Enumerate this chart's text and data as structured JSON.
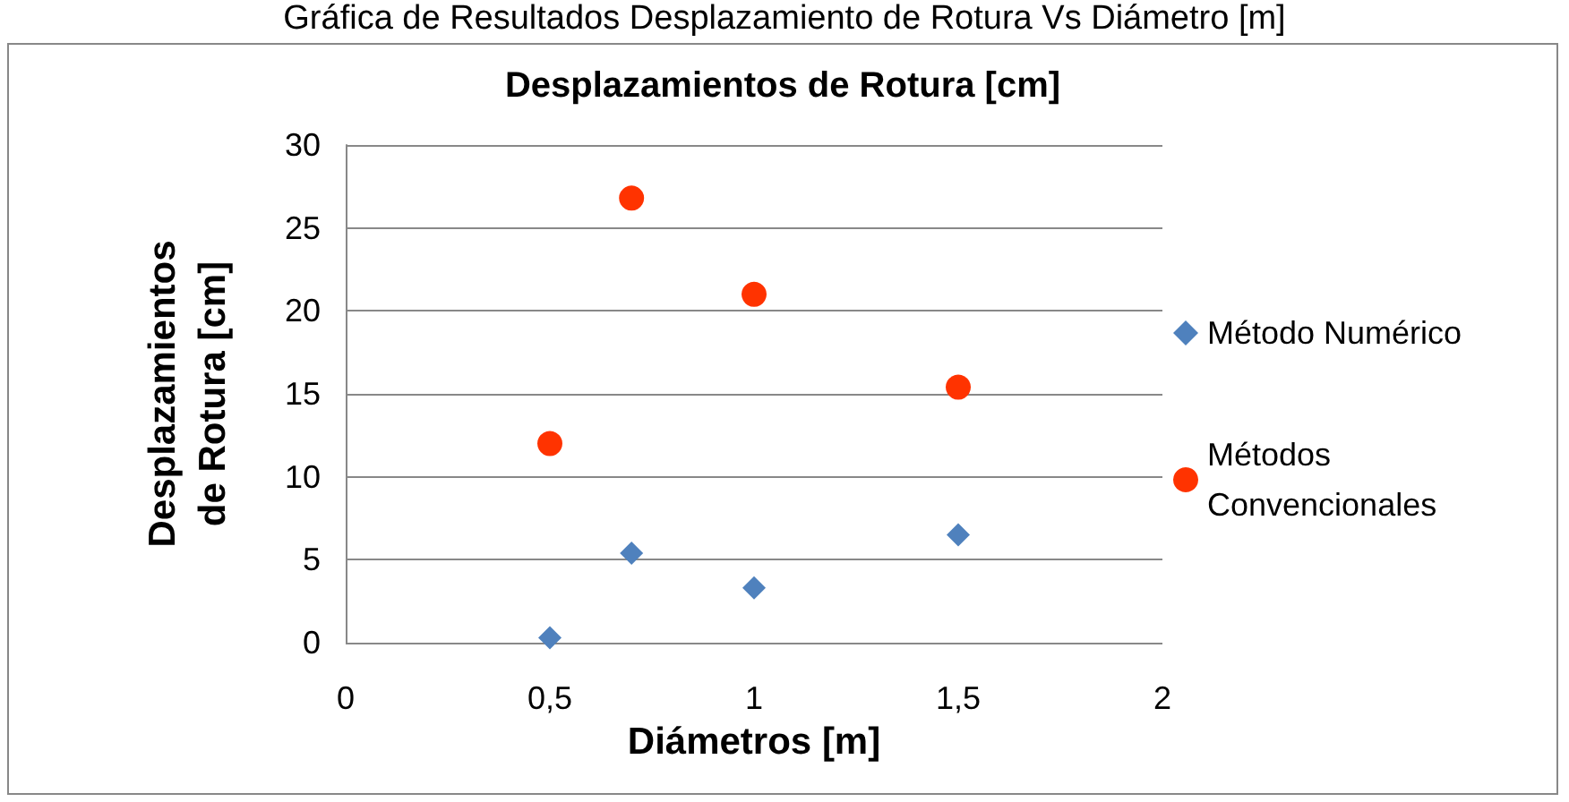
{
  "chart_data": {
    "type": "scatter",
    "title": "Desplazamientos de Rotura [cm]",
    "xlabel": "Diámetros [m]",
    "ylabel": "Desplazamientos de Rotura [cm]",
    "annotations": [
      "Gráfica de Resultados Desplazamiento de Rotura Vs Diámetro [m]"
    ],
    "x": [
      0.5,
      0.7,
      1.0,
      1.5
    ],
    "series": [
      {
        "name": "Método Numérico",
        "color": "#4f81bd",
        "marker": "diamond",
        "values": [
          0.3,
          5.4,
          3.3,
          6.5
        ]
      },
      {
        "name": "Métodos Convencionales",
        "color": "#ff3300",
        "marker": "circle",
        "values": [
          12.0,
          26.8,
          21.0,
          15.4
        ]
      }
    ],
    "xlim": [
      0,
      2
    ],
    "xticks": [
      0,
      {
        "value": 0.5,
        "label": "0,5"
      },
      1,
      {
        "value": 1.5,
        "label": "1,5"
      },
      2
    ],
    "ylim": [
      0,
      30
    ],
    "yticks": [
      0,
      5,
      10,
      15,
      20,
      25,
      30
    ],
    "grid": "y",
    "legend": "right"
  }
}
